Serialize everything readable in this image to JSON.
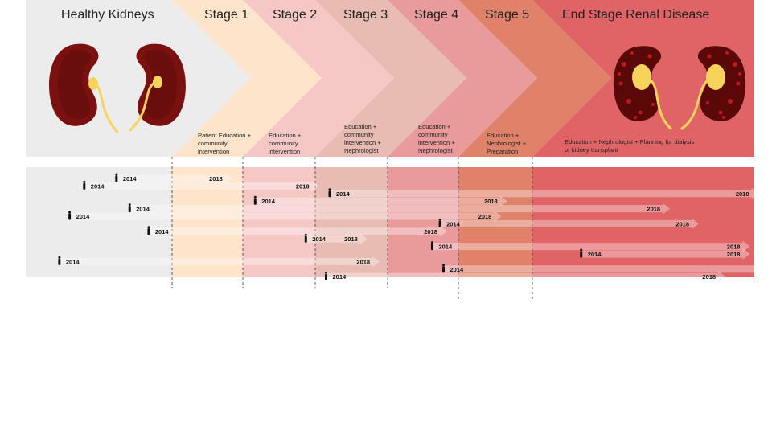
{
  "headers": {
    "healthy": "Healthy Kidneys",
    "stage1": "Stage 1",
    "stage2": "Stage 2",
    "stage3": "Stage 3",
    "stage4": "Stage 4",
    "stage5": "Stage 5",
    "esrd": "End Stage Renal Disease"
  },
  "descriptions": {
    "stage1": "Patient Education + community intervention",
    "stage2": "Education + community intervention",
    "stage3": "Education + community intervention + Nephrologist",
    "stage4": "Education + community intervention + Nephrologist",
    "stage5": "Education + Nephrologist + Preparation",
    "esrd": "Education + Nephrologist + Planning for dialysis or kidney transplant"
  },
  "colors": {
    "healthy_bg": "#ececec",
    "stage1": "#fde4cb",
    "stage2": "#f5c8c6",
    "stage3": "#e8bcb3",
    "stage4": "#e99b9b",
    "stage5": "#e0826a",
    "esrd": "#e06466",
    "kidney": "#7a1010",
    "ureter": "#f7d35c"
  },
  "patient_label_start": "2014",
  "patient_label_end": "2018",
  "patients": [
    {
      "start_stage": 0.62,
      "end_stage": 1.85
    },
    {
      "start_stage": 0.4,
      "end_stage": 3.05
    },
    {
      "start_stage": 3.2,
      "end_stage": 7.02
    },
    {
      "start_stage": 2.17,
      "end_stage": 5.66
    },
    {
      "start_stage": 0.71,
      "end_stage": 6.62
    },
    {
      "start_stage": 0.3,
      "end_stage": 5.58
    },
    {
      "start_stage": 4.74,
      "end_stage": 6.75
    },
    {
      "start_stage": 0.84,
      "end_stage": 4.84
    },
    {
      "start_stage": 2.87,
      "end_stage": 3.72
    },
    {
      "start_stage": 4.63,
      "end_stage": 6.98
    },
    {
      "start_stage": 6.22,
      "end_stage": 6.98
    },
    {
      "start_stage": 0.23,
      "end_stage": 3.89
    },
    {
      "start_stage": 4.79,
      "end_stage": 7.2
    },
    {
      "start_stage": 3.15,
      "end_stage": 6.87
    }
  ]
}
